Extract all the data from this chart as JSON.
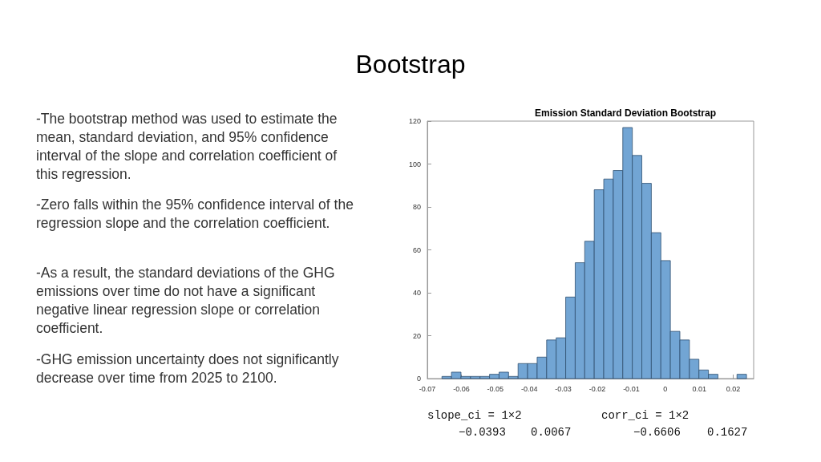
{
  "chart_data": {
    "type": "histogram",
    "title": "Bootstrap",
    "subtitle": "Emission Standard Deviation Bootstrap",
    "bins": [
      -0.0657,
      -0.0629,
      -0.0601,
      -0.0573,
      -0.0545,
      -0.0517,
      -0.0489,
      -0.0461,
      -0.0433,
      -0.0405,
      -0.0377,
      -0.0349,
      -0.0321,
      -0.0293,
      -0.0265,
      -0.0237,
      -0.0209,
      -0.0181,
      -0.0153,
      -0.0125,
      -0.0097,
      -0.0069,
      -0.0041,
      -0.0013,
      0.0015,
      0.0043,
      0.0071,
      0.0099,
      0.0127,
      0.0155,
      0.0183,
      0.0211,
      0.0239
    ],
    "values": [
      1,
      3,
      1,
      1,
      1,
      2,
      3,
      1,
      7,
      7,
      10,
      18,
      19,
      38,
      54,
      64,
      88,
      93,
      97,
      117,
      104,
      91,
      68,
      55,
      22,
      18,
      9,
      4,
      2,
      0,
      0,
      2
    ],
    "color": "#72a5d4",
    "xlim": [
      -0.07,
      0.026
    ],
    "xticks": [
      -0.07,
      -0.06,
      -0.05,
      -0.04,
      -0.03,
      -0.02,
      -0.01,
      0,
      0.01,
      0.02
    ],
    "ylim": [
      0,
      120
    ],
    "yticks": [
      0,
      20,
      40,
      60,
      80,
      100,
      120
    ],
    "grid": false,
    "annotations": [
      "-The bootstrap method was used to estimate the mean, standard deviation, and 95% confidence interval of the slope and correlation coefficient of this regression.",
      "-Zero falls within the 95% confidence interval of the regression slope and the correlation coefficient.",
      "-As a result, the standard deviations of the GHG emissions over time do not have a significant negative linear regression slope or correlation coefficient.",
      "-GHG emission uncertainty does not significantly decrease over time from 2025 to 2100.",
      "slope_ci = 1×2",
      "−0.0393",
      "0.0067",
      "corr_ci = 1×2",
      "−0.6606",
      "0.1627"
    ]
  }
}
